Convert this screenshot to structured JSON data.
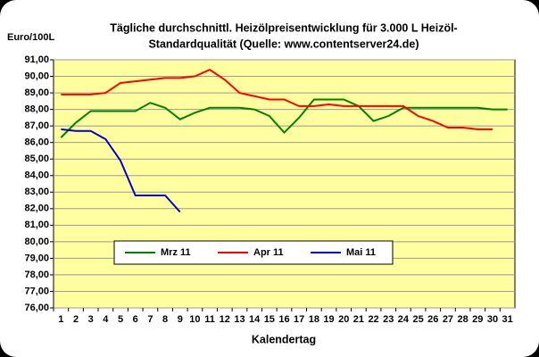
{
  "chart_data": {
    "type": "line",
    "title": [
      "Tägliche durchschnittl. Heizölpreisentwicklung für 3.000 L Heizöl-",
      "Standardqualität (Quelle: www.contentserver24.de)"
    ],
    "y_label": "Euro/100L",
    "x_label": "Kalendertag",
    "categories": [
      "1",
      "2",
      "3",
      "4",
      "5",
      "6",
      "7",
      "8",
      "9",
      "10",
      "11",
      "12",
      "13",
      "14",
      "15",
      "16",
      "17",
      "18",
      "19",
      "20",
      "21",
      "22",
      "23",
      "24",
      "25",
      "26",
      "27",
      "28",
      "29",
      "30",
      "31"
    ],
    "series": [
      {
        "name": "Mrz 11",
        "color": "#008000",
        "values": [
          86.3,
          87.2,
          87.9,
          87.9,
          87.9,
          87.9,
          88.4,
          88.1,
          87.4,
          87.8,
          88.1,
          88.1,
          88.1,
          88.0,
          87.6,
          86.6,
          87.5,
          88.6,
          88.6,
          88.6,
          88.2,
          87.3,
          87.6,
          88.1,
          88.1,
          88.1,
          88.1,
          88.1,
          88.1,
          88.0,
          88.0
        ]
      },
      {
        "name": "Apr 11",
        "color": "#ff0000",
        "values": [
          88.9,
          88.9,
          88.9,
          89.0,
          89.6,
          89.7,
          89.8,
          89.9,
          89.9,
          90.0,
          90.4,
          89.8,
          89.0,
          88.8,
          88.6,
          88.6,
          88.2,
          88.2,
          88.3,
          88.2,
          88.2,
          88.2,
          88.2,
          88.2,
          87.6,
          87.3,
          86.9,
          86.9,
          86.8,
          86.8,
          null
        ]
      },
      {
        "name": "Mai 11",
        "color": "#0000cc",
        "values": [
          86.8,
          86.7,
          86.7,
          86.2,
          84.9,
          82.8,
          82.8,
          82.8,
          81.8,
          null,
          null,
          null,
          null,
          null,
          null,
          null,
          null,
          null,
          null,
          null,
          null,
          null,
          null,
          null,
          null,
          null,
          null,
          null,
          null,
          null,
          null
        ]
      }
    ],
    "ylim": [
      76,
      91
    ],
    "yticks": [
      {
        "value": 76,
        "label": "76,00"
      },
      {
        "value": 77,
        "label": "77,00"
      },
      {
        "value": 78,
        "label": "78,00"
      },
      {
        "value": 79,
        "label": "79,00"
      },
      {
        "value": 80,
        "label": "80,00"
      },
      {
        "value": 81,
        "label": "81,00"
      },
      {
        "value": 82,
        "label": "82,00"
      },
      {
        "value": 83,
        "label": "83,00"
      },
      {
        "value": 84,
        "label": "84,00"
      },
      {
        "value": 85,
        "label": "85,00"
      },
      {
        "value": 86,
        "label": "86,00"
      },
      {
        "value": 87,
        "label": "87,00"
      },
      {
        "value": 88,
        "label": "88,00"
      },
      {
        "value": 89,
        "label": "89,00"
      },
      {
        "value": 90,
        "label": "90,00"
      },
      {
        "value": 91,
        "label": "91,00"
      }
    ],
    "grid": true,
    "plot_background": "#ffffa0"
  }
}
